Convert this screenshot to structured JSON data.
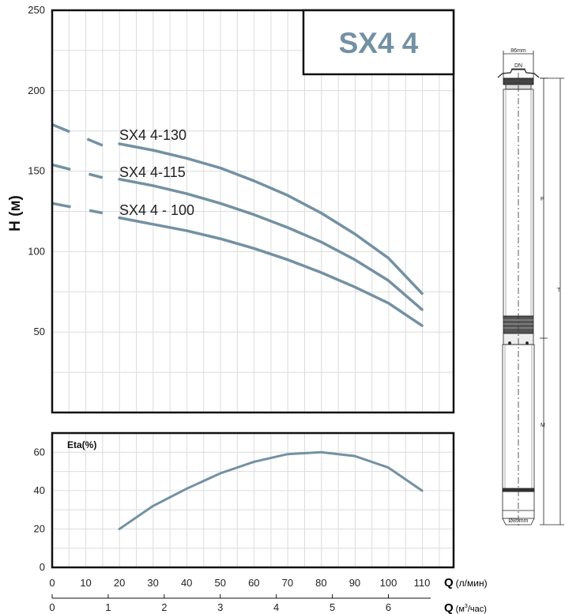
{
  "chart_data": [
    {
      "type": "line",
      "title": "SX4 4",
      "ylabel": "H (м)",
      "ylim": [
        0,
        250
      ],
      "yticks": [
        50,
        100,
        150,
        200,
        250
      ],
      "xlim": [
        0,
        115
      ],
      "grid": true,
      "series": [
        {
          "name": "SX4 4-130",
          "dashed_x": [
            0,
            15
          ],
          "dashed_y": [
            179,
            166
          ],
          "x": [
            20,
            30,
            40,
            50,
            60,
            70,
            80,
            90,
            100,
            110
          ],
          "values": [
            167,
            163,
            158,
            152,
            144,
            135,
            124,
            111,
            96,
            74
          ]
        },
        {
          "name": "SX4 4-115",
          "dashed_x": [
            0,
            15
          ],
          "dashed_y": [
            154,
            146
          ],
          "x": [
            20,
            30,
            40,
            50,
            60,
            70,
            80,
            90,
            100,
            110
          ],
          "values": [
            145,
            141,
            136,
            130,
            123,
            115,
            106,
            95,
            82,
            64
          ]
        },
        {
          "name": "SX4 4 - 100",
          "dashed_x": [
            0,
            15
          ],
          "dashed_y": [
            130,
            124
          ],
          "x": [
            20,
            30,
            40,
            50,
            60,
            70,
            80,
            90,
            100,
            110
          ],
          "values": [
            121,
            117,
            113,
            108,
            102,
            95,
            87,
            78,
            68,
            54
          ]
        }
      ]
    },
    {
      "type": "line",
      "ylabel": "Eta(%)",
      "ylim": [
        0,
        70
      ],
      "yticks": [
        0,
        20,
        40,
        60
      ],
      "xlim": [
        0,
        115
      ],
      "grid": true,
      "series": [
        {
          "x": [
            20,
            30,
            40,
            50,
            60,
            70,
            80,
            90,
            100,
            110
          ],
          "values": [
            20,
            32,
            41,
            49,
            55,
            59,
            60,
            58,
            52,
            40
          ]
        }
      ]
    }
  ],
  "axes": {
    "x1": {
      "label": "Q",
      "unit": "(л/мин)",
      "ticks": [
        "0",
        "10",
        "20",
        "30",
        "40",
        "50",
        "60",
        "70",
        "80",
        "90",
        "100",
        "110"
      ]
    },
    "x2": {
      "label": "Q",
      "unit_prefix": "(м",
      "unit_sup": "3",
      "unit_suffix": "/час)",
      "ticks": [
        "0",
        "1",
        "2",
        "3",
        "4",
        "5",
        "6"
      ]
    }
  },
  "drawing": {
    "width_label": "86mm",
    "dn_label": "DN",
    "p_label": "P",
    "t_label": "T",
    "m_label": "M",
    "dia_label": "Ø85mm"
  },
  "colors": {
    "curve": "#7391a3",
    "grid": "#dcdcdc",
    "frame": "#111111",
    "title": "#7391a3"
  }
}
